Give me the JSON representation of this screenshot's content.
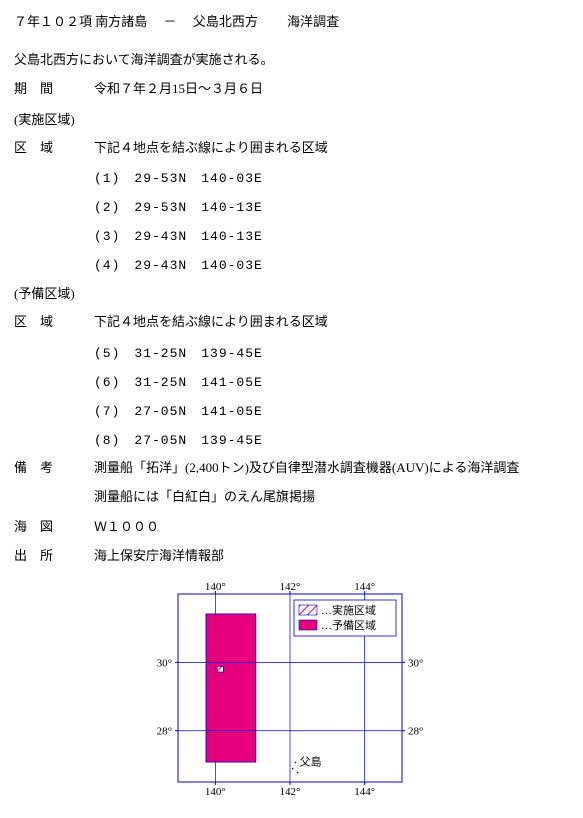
{
  "header": {
    "code": "７年１０２項",
    "region": "南方諸島",
    "sep": "－",
    "area": "父島北西方",
    "kind": "海洋調査"
  },
  "description": "父島北西方において海洋調査が実施される。",
  "period_label": "期　間",
  "period_value": "令和７年２月15日～３月６日",
  "impl_zone_head": "(実施区域)",
  "zone_label": "区　域",
  "zone_desc": "下記４地点を結ぶ線により囲まれる区域",
  "impl_points": [
    "(1)　29-53N　140-03E",
    "(2)　29-53N　140-13E",
    "(3)　29-43N　140-13E",
    "(4)　29-43N　140-03E"
  ],
  "reserve_zone_head": "(予備区域)",
  "reserve_desc": "下記４地点を結ぶ線により囲まれる区域",
  "reserve_points": [
    "(5)　31-25N　139-45E",
    "(6)　31-25N　141-05E",
    "(7)　27-05N　141-05E",
    "(8)　27-05N　139-45E"
  ],
  "remark_label": "備　考",
  "remark_l1": "測量船「拓洋」(2,400トン)及び自律型潜水調査機器(AUV)による海洋調査",
  "remark_l2": "測量船には「白紅白」のえん尾旗掲揚",
  "chart_label": "海　図",
  "chart_value": "Ｗ１０００",
  "source_label": "出　所",
  "source_value": "海上保安庁海洋情報部",
  "map": {
    "border_color": "#0000d0",
    "grid_color": "#0000d0",
    "reserve_fill": "#e6007e",
    "impl_fill": "#ffffff",
    "impl_hatch": "#e6007e",
    "bg": "#ffffff",
    "lon_ticks": [
      "140°",
      "142°",
      "144°"
    ],
    "lat_ticks": [
      "30°",
      "28°"
    ],
    "legend_impl": "…実施区域",
    "legend_reserve": "…予備区域",
    "island_label": "父島",
    "lon_range": [
      139,
      145
    ],
    "lat_range": [
      26.5,
      32
    ],
    "reserve_box": {
      "lon": [
        139.75,
        141.083
      ],
      "lat": [
        27.083,
        31.417
      ]
    },
    "impl_box": {
      "lon": [
        140.05,
        140.217
      ],
      "lat": [
        29.717,
        29.883
      ]
    },
    "island": {
      "lon": 142.15,
      "lat": 27.07
    }
  }
}
